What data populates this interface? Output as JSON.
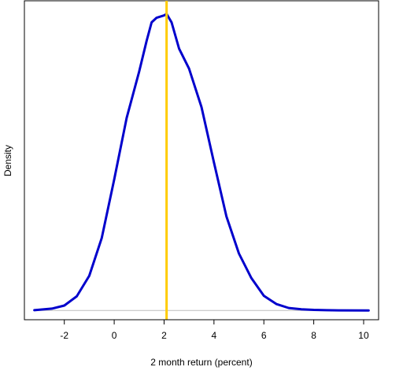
{
  "chart_data": {
    "type": "line",
    "xlabel": "2 month return (percent)",
    "ylabel": "Density",
    "xlim": [
      -3.6,
      10.6
    ],
    "ylim": [
      -0.006,
      0.201
    ],
    "x_ticks": [
      -2,
      0,
      2,
      4,
      6,
      8,
      10
    ],
    "x_tick_labels": [
      "-2",
      "0",
      "2",
      "4",
      "6",
      "8",
      "10"
    ],
    "y_ticks_shown": false,
    "grid": false,
    "legend": "none",
    "colors": {
      "density_line": "#0000cc",
      "vertical_marker": "#ffcc00",
      "baseline": "#bebebe",
      "frame": "#000000"
    },
    "vertical_line_x": 2.1,
    "baseline_y": 0,
    "series": [
      {
        "x": [
          -3.2,
          -2.5,
          -2.0,
          -1.5,
          -1.0,
          -0.5,
          0.0,
          0.5,
          1.0,
          1.3,
          1.5,
          1.7,
          2.0,
          2.1,
          2.3,
          2.6,
          3.0,
          3.5,
          4.0,
          4.5,
          5.0,
          5.5,
          6.0,
          6.5,
          7.0,
          7.5,
          8.0,
          8.5,
          9.0,
          10.2
        ],
        "y": [
          0.0002,
          0.0012,
          0.0032,
          0.0092,
          0.0225,
          0.047,
          0.085,
          0.125,
          0.155,
          0.175,
          0.187,
          0.19,
          0.1915,
          0.1925,
          0.187,
          0.17,
          0.157,
          0.132,
          0.096,
          0.061,
          0.037,
          0.021,
          0.0095,
          0.0042,
          0.0016,
          0.0008,
          0.0004,
          0.0002,
          0.0001,
          0.0
        ]
      }
    ]
  }
}
